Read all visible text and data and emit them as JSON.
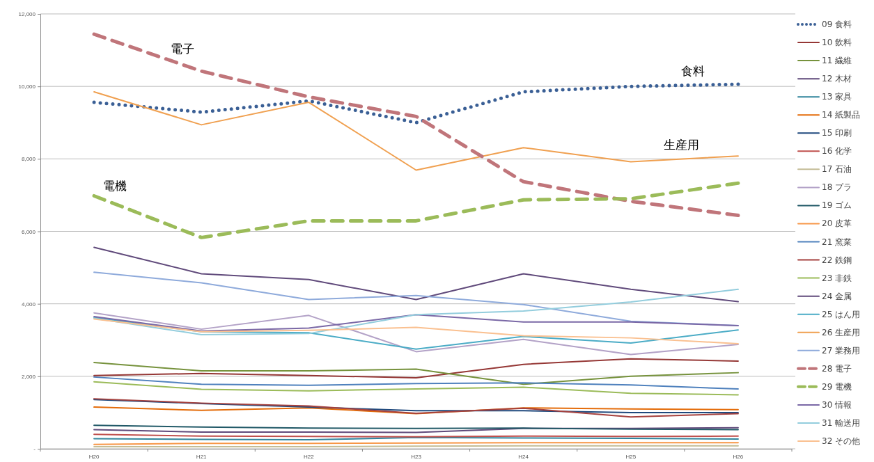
{
  "chart_data": {
    "type": "line",
    "categories": [
      "H20",
      "H21",
      "H22",
      "H23",
      "H24",
      "H25",
      "H26"
    ],
    "ylim": [
      0,
      12000
    ],
    "yticks": [
      {
        "value": 0,
        "label": "-"
      },
      {
        "value": 2000,
        "label": "2,000"
      },
      {
        "value": 4000,
        "label": "4,000"
      },
      {
        "value": 6000,
        "label": "6,000"
      },
      {
        "value": 8000,
        "label": "8,000"
      },
      {
        "value": 10000,
        "label": "10,000"
      },
      {
        "value": 12000,
        "label": "12,000"
      }
    ],
    "grid": "y",
    "legend": "right",
    "marker": "none",
    "annotations": [
      "電子",
      "食料",
      "生産用",
      "電機"
    ],
    "series": [
      {
        "name": "09 食料",
        "color": "#3a5f95",
        "line_style": "dotted",
        "values": [
          9560,
          9290,
          9600,
          9000,
          9850,
          10000,
          10060
        ]
      },
      {
        "name": "10 飲料",
        "color": "#953735",
        "line_style": "solid",
        "values": [
          2020,
          2080,
          2020,
          1960,
          2330,
          2480,
          2420
        ]
      },
      {
        "name": "11 繊維",
        "color": "#76923c",
        "line_style": "solid",
        "values": [
          2380,
          2150,
          2150,
          2200,
          1780,
          2000,
          2100
        ]
      },
      {
        "name": "12 木材",
        "color": "#5f497a",
        "line_style": "solid",
        "values": [
          530,
          460,
          460,
          450,
          560,
          560,
          580
        ]
      },
      {
        "name": "13 家具",
        "color": "#31859c",
        "line_style": "solid",
        "values": [
          280,
          260,
          250,
          310,
          300,
          290,
          270
        ]
      },
      {
        "name": "14 紙製品",
        "color": "#e46c0a",
        "line_style": "solid",
        "values": [
          1150,
          1060,
          1130,
          970,
          1130,
          1100,
          1080
        ]
      },
      {
        "name": "15 印刷",
        "color": "#1f497d",
        "line_style": "solid",
        "values": [
          1360,
          1250,
          1150,
          1050,
          1050,
          1000,
          1000
        ]
      },
      {
        "name": "16 化学",
        "color": "#c0504d",
        "line_style": "solid",
        "values": [
          400,
          350,
          340,
          330,
          350,
          340,
          350
        ]
      },
      {
        "name": "17 石油",
        "color": "#c4bd97",
        "line_style": "solid",
        "values": [
          60,
          60,
          60,
          70,
          80,
          80,
          80
        ]
      },
      {
        "name": "18 プラ",
        "color": "#b3a2c7",
        "line_style": "solid",
        "values": [
          3750,
          3300,
          3680,
          2680,
          3020,
          2600,
          2880
        ]
      },
      {
        "name": "19 ゴム",
        "color": "#215967",
        "line_style": "solid",
        "values": [
          650,
          600,
          570,
          560,
          570,
          540,
          530
        ]
      },
      {
        "name": "20 皮革",
        "color": "#f79646",
        "line_style": "solid",
        "values": [
          120,
          150,
          150,
          160,
          170,
          170,
          170
        ]
      },
      {
        "name": "21 窯業",
        "color": "#4f81bd",
        "line_style": "solid",
        "values": [
          1980,
          1780,
          1750,
          1800,
          1820,
          1760,
          1650
        ]
      },
      {
        "name": "22 鉄鋼",
        "color": "#a5413e",
        "line_style": "solid",
        "values": [
          1380,
          1260,
          1180,
          980,
          1120,
          880,
          970
        ]
      },
      {
        "name": "23 非鉄",
        "color": "#9bbb59",
        "line_style": "solid",
        "values": [
          1850,
          1640,
          1600,
          1650,
          1700,
          1530,
          1490
        ]
      },
      {
        "name": "24 金属",
        "color": "#604a7b",
        "line_style": "solid",
        "values": [
          5560,
          4830,
          4670,
          4120,
          4830,
          4400,
          4060
        ]
      },
      {
        "name": "25 はん用",
        "color": "#4bacc6",
        "line_style": "solid",
        "values": [
          3620,
          3230,
          3200,
          2750,
          3100,
          2920,
          3280
        ]
      },
      {
        "name": "26 生産用",
        "color": "#f0a050",
        "line_style": "solid",
        "values": [
          9850,
          8940,
          9560,
          7690,
          8310,
          7920,
          8080
        ]
      },
      {
        "name": "27 業務用",
        "color": "#8eaadb",
        "line_style": "solid",
        "values": [
          4870,
          4580,
          4120,
          4230,
          3980,
          3520,
          3400
        ]
      },
      {
        "name": "28 電子",
        "color": "#c0757a",
        "line_style": "dashed",
        "values": [
          11440,
          10420,
          9710,
          9170,
          7370,
          6830,
          6440
        ]
      },
      {
        "name": "29 電機",
        "color": "#9bbb59",
        "line_style": "dashed",
        "values": [
          6980,
          5830,
          6290,
          6290,
          6870,
          6900,
          7330
        ]
      },
      {
        "name": "30 情報",
        "color": "#7a68a6",
        "line_style": "solid",
        "values": [
          3650,
          3250,
          3330,
          3700,
          3500,
          3500,
          3400
        ]
      },
      {
        "name": "31 輸送用",
        "color": "#93cddd",
        "line_style": "solid",
        "values": [
          3600,
          3150,
          3180,
          3700,
          3800,
          4050,
          4400
        ]
      },
      {
        "name": "32 その他",
        "color": "#fac090",
        "line_style": "solid",
        "values": [
          3580,
          3230,
          3270,
          3350,
          3120,
          3060,
          2900
        ]
      }
    ]
  }
}
